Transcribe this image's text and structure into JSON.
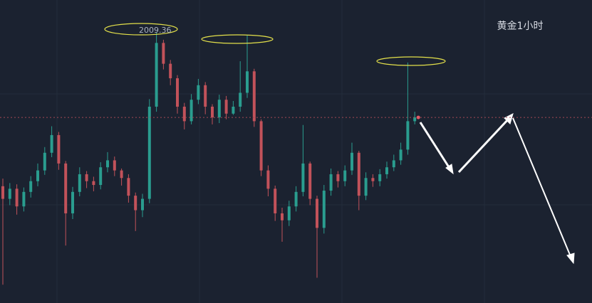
{
  "chart_data": {
    "type": "candlestick",
    "title": "黄金1小时",
    "annotation": "2009.36",
    "ylim": [
      1966.5,
      2014.5
    ],
    "up_color": "#2a9d8f",
    "down_color": "#c2525a",
    "open": [
      1985.0,
      1983.0,
      1984.6,
      1981.8,
      1984.1,
      1985.8,
      1987.5,
      1990.3,
      1993.1,
      1988.6,
      1980.7,
      1984.1,
      1986.9,
      1985.8,
      1985.2,
      1988.0,
      1989.1,
      1987.5,
      1986.3,
      1983.5,
      1981.2,
      1983.0,
      1997.6,
      2007.7,
      2004.4,
      2002.1,
      1997.6,
      1995.3,
      1998.7,
      2001.0,
      1997.6,
      1995.9,
      1998.7,
      1996.5,
      1997.6,
      1999.8,
      2003.2,
      1995.3,
      1987.5,
      1984.6,
      1980.7,
      1979.6,
      1981.8,
      1984.1,
      1988.6,
      1983.0,
      1978.4,
      1984.3,
      1986.9,
      1985.8,
      1987.5,
      1990.3,
      1983.5,
      1986.3,
      1985.8,
      1986.9,
      1988.0,
      1989.1,
      1990.8,
      1995.3
    ],
    "high": [
      1986.2,
      1985.5,
      1985.3,
      1984.8,
      1986.6,
      1988.6,
      1991.2,
      1994.5,
      1993.6,
      1989.0,
      1984.9,
      1988.0,
      1987.4,
      1986.5,
      1988.8,
      1990.4,
      1989.7,
      1987.8,
      1986.9,
      1984.0,
      1983.8,
      1998.8,
      2009.36,
      2008.2,
      2005.0,
      2002.6,
      1998.2,
      1999.6,
      2002.0,
      2001.5,
      1998.0,
      1999.5,
      1999.3,
      1998.5,
      2004.8,
      2008.9,
      2003.6,
      1995.6,
      1988.3,
      1985.1,
      1981.6,
      1982.7,
      1985.0,
      1994.7,
      1988.9,
      1983.5,
      1985.2,
      1987.8,
      1987.4,
      1988.3,
      1991.9,
      1990.6,
      1987.2,
      1986.9,
      1987.7,
      1988.9,
      1990.0,
      1991.9,
      2004.6,
      1996.8
    ],
    "low": [
      1969.4,
      1982.0,
      1980.5,
      1981.0,
      1983.2,
      1985.0,
      1986.8,
      1989.6,
      1987.6,
      1975.6,
      1979.8,
      1983.4,
      1984.7,
      1984.2,
      1984.5,
      1987.2,
      1986.6,
      1985.1,
      1982.4,
      1977.9,
      1980.1,
      1982.3,
      1996.8,
      2003.5,
      2001.0,
      1996.5,
      1994.0,
      1994.8,
      1998.0,
      1996.4,
      1994.8,
      1995.0,
      1995.6,
      1996.3,
      1996.8,
      1999.0,
      1994.4,
      1986.6,
      1983.4,
      1979.5,
      1976.2,
      1978.7,
      1981.0,
      1983.4,
      1982.0,
      1970.5,
      1977.5,
      1983.5,
      1984.8,
      1985.0,
      1986.8,
      1981.2,
      1982.8,
      1984.9,
      1985.0,
      1986.2,
      1987.4,
      1988.4,
      1990.0,
      1994.8
    ],
    "close": [
      1983.0,
      1984.6,
      1981.8,
      1984.1,
      1985.8,
      1987.5,
      1990.3,
      1993.1,
      1988.6,
      1980.7,
      1984.1,
      1986.9,
      1985.8,
      1985.2,
      1988.0,
      1989.1,
      1987.5,
      1986.3,
      1983.5,
      1981.2,
      1983.0,
      1997.6,
      2007.7,
      2004.4,
      2002.1,
      1997.6,
      1995.3,
      1998.7,
      2001.0,
      1997.6,
      1995.9,
      1998.7,
      1996.5,
      1997.6,
      1999.8,
      2003.2,
      1995.3,
      1987.5,
      1984.6,
      1980.7,
      1979.6,
      1981.8,
      1984.1,
      1988.6,
      1983.0,
      1978.4,
      1984.3,
      1986.9,
      1985.8,
      1987.5,
      1990.3,
      1983.5,
      1986.3,
      1985.8,
      1986.9,
      1988.0,
      1989.1,
      1990.8,
      1995.3,
      1995.9
    ]
  }
}
